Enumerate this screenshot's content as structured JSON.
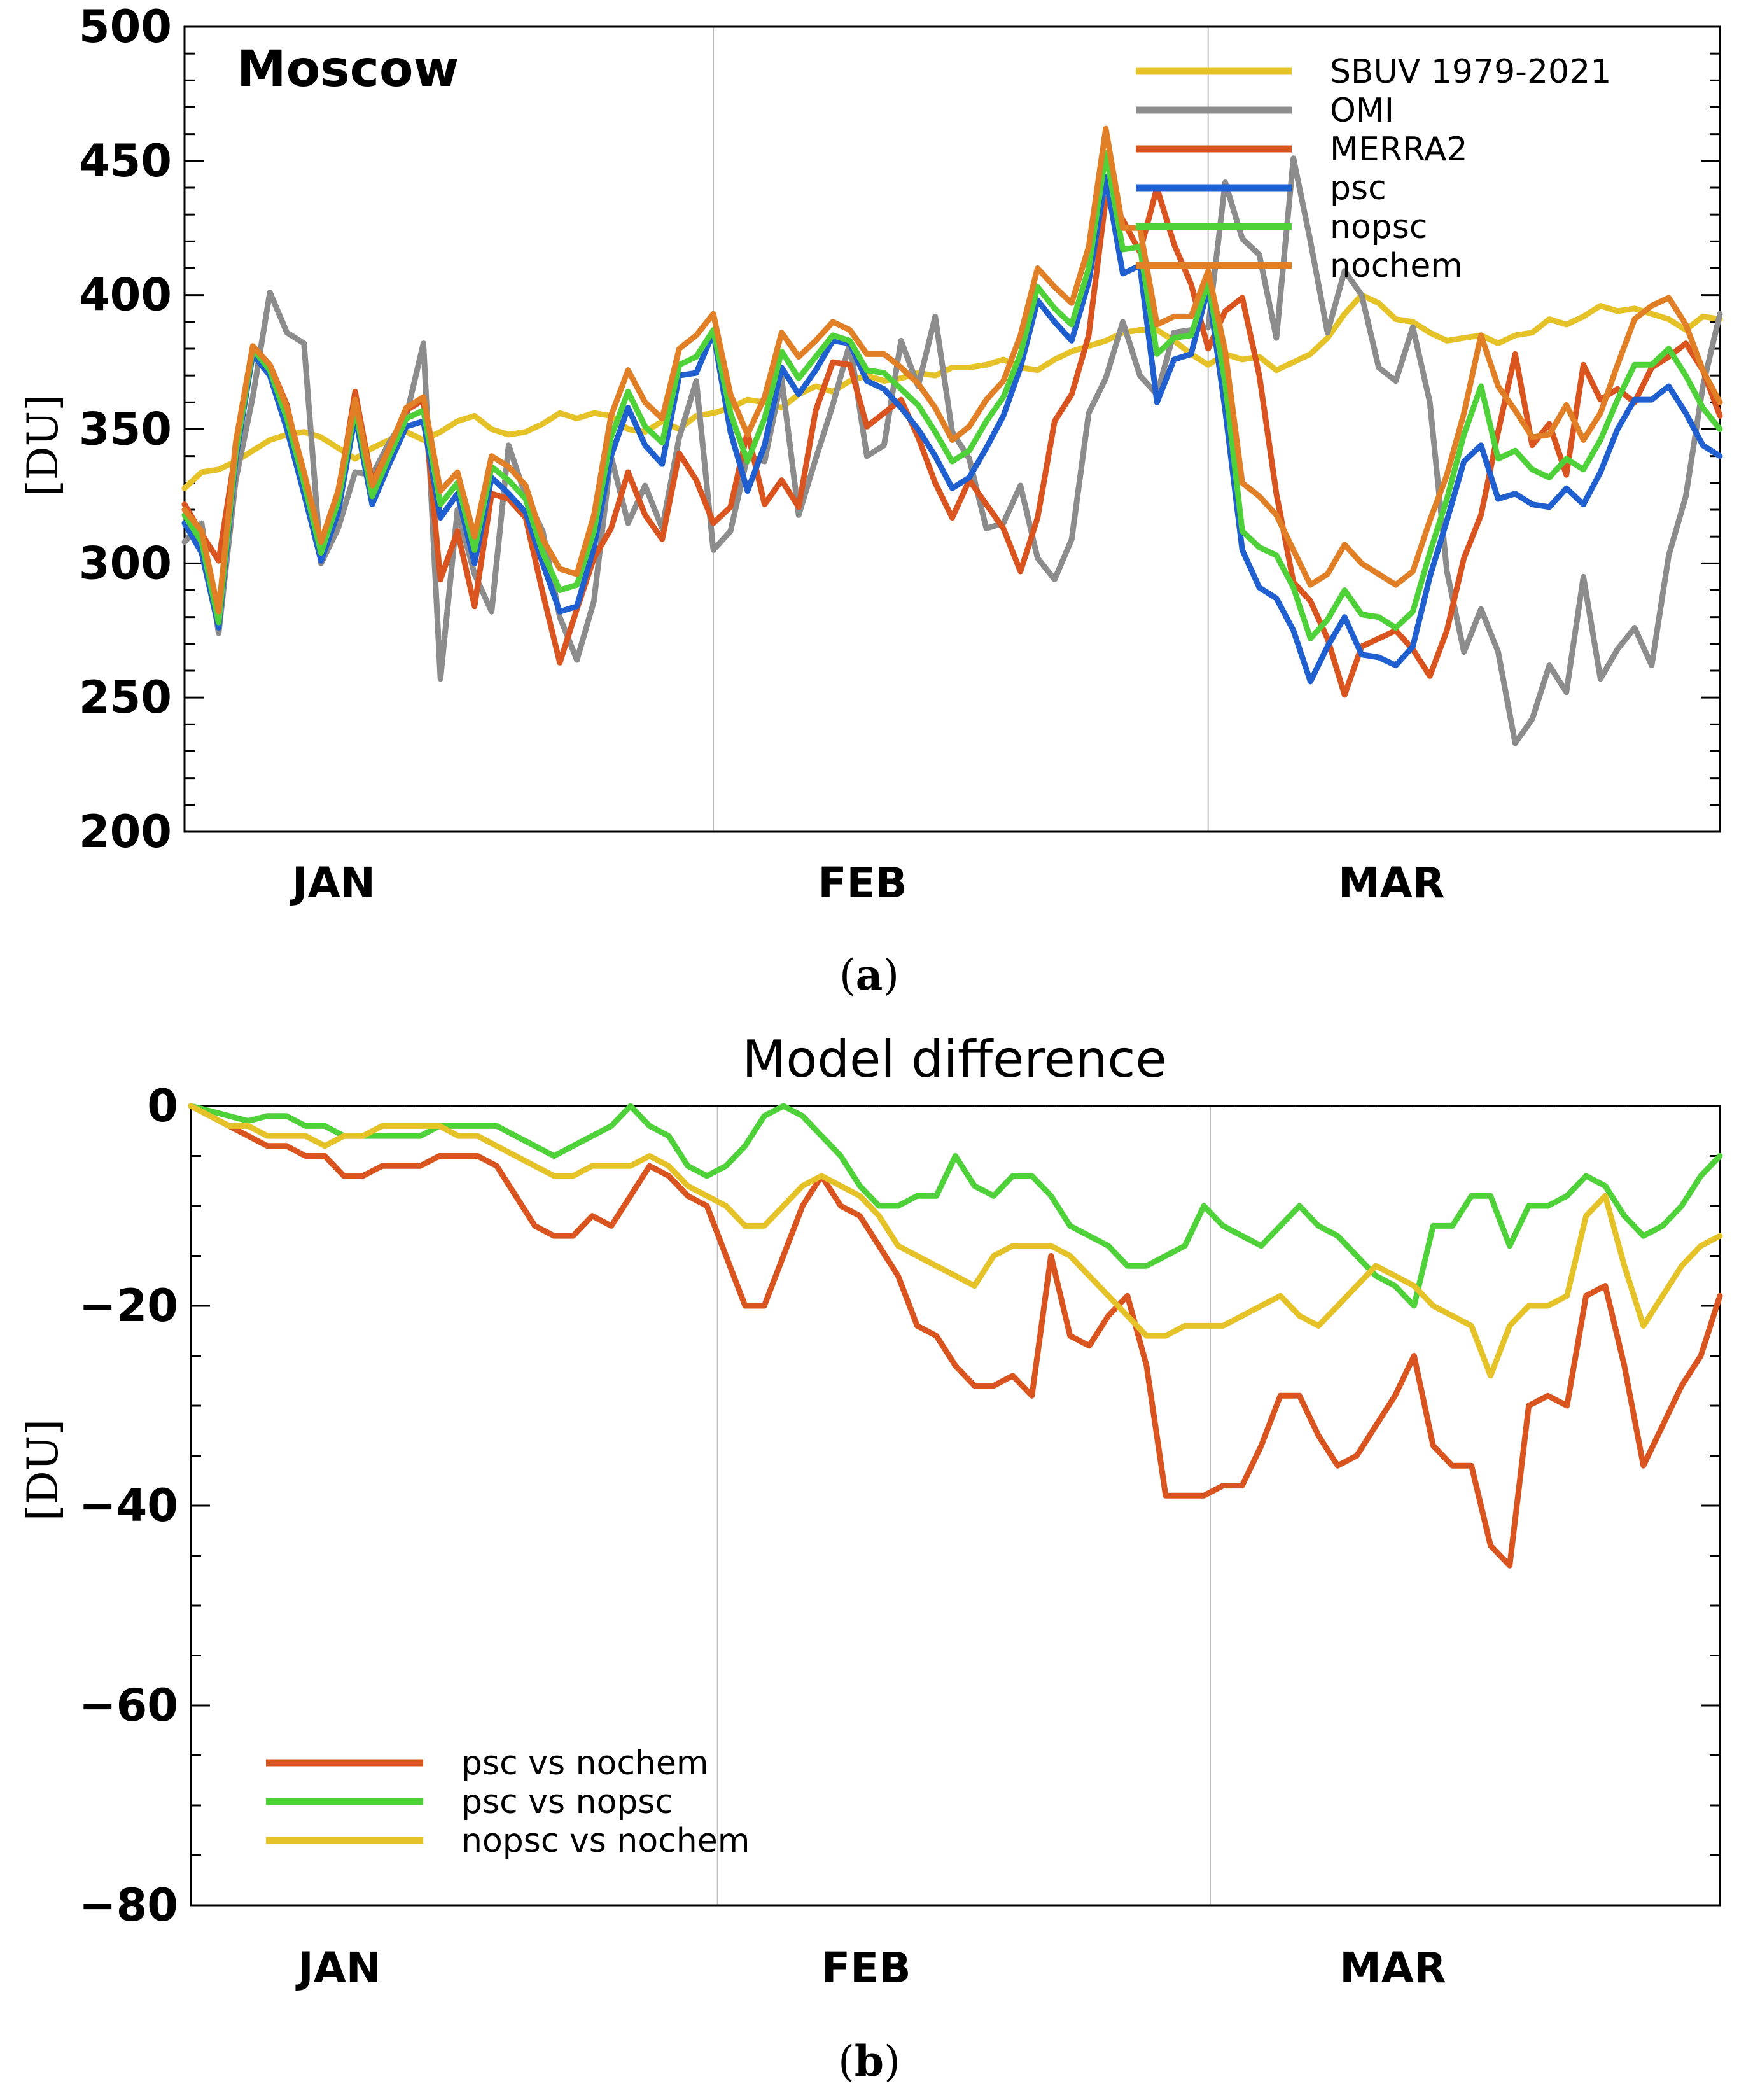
{
  "chart_data": [
    {
      "panel": "a",
      "type": "line",
      "title": "Moscow",
      "caption_letter": "a",
      "ylabel": "[DU]",
      "xlabel": "",
      "ylim": [
        200,
        500
      ],
      "yticks": [
        200,
        250,
        300,
        350,
        400,
        450,
        500
      ],
      "day_range": [
        1,
        91
      ],
      "month_ticks": [
        {
          "day": 1,
          "label": ""
        },
        {
          "day": 32,
          "label": ""
        },
        {
          "day": 61,
          "label": ""
        }
      ],
      "month_labels": [
        {
          "day": 9,
          "label": "JAN"
        },
        {
          "day": 40,
          "label": "FEB"
        },
        {
          "day": 71,
          "label": "MAR"
        }
      ],
      "series": [
        {
          "name": "SBUV 1979-2021",
          "color": "#e6c229",
          "values": [
            328,
            334,
            335,
            338,
            342,
            346,
            348,
            349,
            347,
            343,
            339,
            343,
            346,
            349,
            346,
            349,
            353,
            355,
            350,
            348,
            349,
            352,
            356,
            354,
            356,
            355,
            350,
            349,
            353,
            350,
            355,
            356,
            358,
            361,
            360,
            358,
            363,
            366,
            364,
            368,
            370,
            368,
            369,
            371,
            370,
            373,
            373,
            374,
            376,
            373,
            372,
            376,
            379,
            381,
            383,
            386,
            387,
            387,
            383,
            378,
            374,
            378,
            376,
            377,
            372,
            375,
            378,
            384,
            393,
            400,
            397,
            391,
            390,
            386,
            383,
            384,
            385,
            382,
            385,
            386,
            391,
            389,
            392,
            396,
            394,
            395,
            393,
            391,
            387,
            392,
            391
          ]
        },
        {
          "name": "OMI",
          "color": "#8c8c8c",
          "values": [
            308,
            315,
            274,
            331,
            362,
            401,
            386,
            382,
            300,
            313,
            334,
            333,
            345,
            355,
            382,
            257,
            320,
            296,
            282,
            344,
            325,
            312,
            280,
            264,
            286,
            340,
            315,
            329,
            313,
            347,
            368,
            305,
            312,
            340,
            338,
            369,
            318,
            339,
            359,
            382,
            340,
            344,
            383,
            366,
            392,
            349,
            339,
            313,
            315,
            329,
            302,
            294,
            309,
            356,
            369,
            390,
            370,
            363,
            386,
            387,
            388,
            442,
            421,
            415,
            384,
            451,
            420,
            386,
            409,
            400,
            373,
            368,
            388,
            360,
            297,
            267,
            283,
            267,
            233,
            242,
            262,
            252,
            295,
            257,
            268,
            276,
            262,
            303,
            325,
            366,
            393
          ]
        },
        {
          "name": "MERRA2",
          "color": "#d9541e",
          "values": [
            322,
            311,
            301,
            342,
            380,
            374,
            359,
            331,
            307,
            325,
            364,
            330,
            343,
            357,
            361,
            294,
            312,
            284,
            326,
            324,
            317,
            289,
            263,
            283,
            302,
            313,
            334,
            318,
            309,
            341,
            331,
            315,
            321,
            349,
            322,
            331,
            321,
            357,
            375,
            374,
            351,
            356,
            361,
            347,
            330,
            317,
            331,
            322,
            313,
            297,
            317,
            353,
            363,
            385,
            436,
            428,
            416,
            440,
            419,
            404,
            380,
            394,
            399,
            370,
            326,
            293,
            286,
            272,
            251,
            269,
            272,
            275,
            268,
            258,
            275,
            302,
            318,
            349,
            378,
            344,
            352,
            333,
            374,
            361,
            365,
            360,
            373,
            377,
            382,
            372,
            355
          ]
        },
        {
          "name": "psc",
          "color": "#1f5fcf",
          "values": [
            315,
            304,
            276,
            339,
            378,
            370,
            350,
            326,
            301,
            319,
            355,
            322,
            337,
            351,
            353,
            317,
            326,
            300,
            332,
            326,
            319,
            300,
            282,
            284,
            306,
            340,
            358,
            344,
            337,
            370,
            371,
            386,
            349,
            327,
            344,
            373,
            363,
            372,
            383,
            382,
            368,
            365,
            358,
            350,
            340,
            328,
            332,
            343,
            355,
            373,
            398,
            390,
            383,
            405,
            444,
            408,
            411,
            360,
            376,
            378,
            403,
            357,
            305,
            291,
            287,
            275,
            256,
            269,
            280,
            266,
            265,
            262,
            269,
            295,
            316,
            338,
            344,
            324,
            326,
            322,
            321,
            328,
            322,
            334,
            350,
            361,
            361,
            366,
            356,
            344,
            340
          ]
        },
        {
          "name": "nopsc",
          "color": "#4fd13a",
          "values": [
            318,
            308,
            278,
            341,
            380,
            372,
            354,
            330,
            304,
            323,
            358,
            325,
            340,
            354,
            357,
            322,
            330,
            305,
            336,
            331,
            324,
            304,
            290,
            292,
            312,
            347,
            364,
            351,
            345,
            374,
            377,
            387,
            356,
            338,
            354,
            379,
            369,
            377,
            385,
            383,
            372,
            371,
            365,
            359,
            349,
            338,
            342,
            353,
            362,
            378,
            403,
            395,
            389,
            410,
            453,
            417,
            418,
            378,
            384,
            385,
            405,
            367,
            312,
            306,
            303,
            291,
            272,
            279,
            290,
            281,
            280,
            276,
            282,
            304,
            324,
            348,
            366,
            339,
            342,
            335,
            332,
            339,
            335,
            346,
            361,
            374,
            374,
            380,
            370,
            358,
            350
          ]
        },
        {
          "name": "nochem",
          "color": "#e07f25",
          "values": [
            320,
            312,
            282,
            345,
            381,
            374,
            358,
            334,
            308,
            327,
            361,
            329,
            343,
            358,
            362,
            327,
            334,
            310,
            340,
            336,
            329,
            309,
            298,
            296,
            318,
            355,
            372,
            360,
            354,
            380,
            385,
            393,
            363,
            348,
            362,
            386,
            377,
            383,
            390,
            387,
            378,
            378,
            373,
            367,
            358,
            346,
            351,
            361,
            368,
            385,
            410,
            403,
            397,
            418,
            462,
            425,
            425,
            389,
            392,
            392,
            409,
            379,
            330,
            325,
            318,
            305,
            292,
            296,
            307,
            300,
            296,
            292,
            297,
            316,
            333,
            356,
            385,
            366,
            357,
            347,
            348,
            359,
            346,
            356,
            374,
            391,
            396,
            399,
            389,
            372,
            360
          ]
        }
      ]
    },
    {
      "panel": "b",
      "type": "line",
      "title": "Model difference",
      "caption_letter": "b",
      "ylabel": "[DU]",
      "xlabel": "",
      "ylim": [
        -80,
        0
      ],
      "yticks": [
        -80,
        -60,
        -40,
        -20,
        0
      ],
      "day_range": [
        1,
        91
      ],
      "month_ticks": [
        {
          "day": 1,
          "label": ""
        },
        {
          "day": 32,
          "label": ""
        },
        {
          "day": 61,
          "label": ""
        }
      ],
      "month_labels": [
        {
          "day": 9,
          "label": "JAN"
        },
        {
          "day": 40,
          "label": "FEB"
        },
        {
          "day": 71,
          "label": "MAR"
        }
      ],
      "zero_line": true,
      "series": [
        {
          "name": "psc vs nochem",
          "color": "#d9541e",
          "values": [
            0,
            -1,
            -2,
            -3,
            -4,
            -4,
            -5,
            -5,
            -7,
            -7,
            -6,
            -6,
            -6,
            -5,
            -5,
            -5,
            -6,
            -9,
            -12,
            -13,
            -13,
            -11,
            -12,
            -9,
            -6,
            -7,
            -9,
            -10,
            -15,
            -20,
            -20,
            -15,
            -10,
            -7,
            -10,
            -11,
            -14,
            -17,
            -22,
            -23,
            -26,
            -28,
            -28,
            -27,
            -29,
            -15,
            -23,
            -24,
            -21,
            -19,
            -26,
            -39,
            -39,
            -39,
            -38,
            -38,
            -34,
            -29,
            -29,
            -33,
            -36,
            -35,
            -32,
            -29,
            -25,
            -34,
            -36,
            -36,
            -44,
            -46,
            -30,
            -29,
            -30,
            -19,
            -18,
            -26,
            -36,
            -32,
            -28,
            -25,
            -19
          ]
        },
        {
          "name": "psc vs nopsc",
          "color": "#4fd13a",
          "values": [
            0,
            -0.5,
            -1,
            -1.5,
            -1,
            -1,
            -2,
            -2,
            -3,
            -3,
            -3,
            -3,
            -3,
            -2,
            -2,
            -2,
            -2,
            -3,
            -4,
            -5,
            -4,
            -3,
            -2,
            0,
            -2,
            -3,
            -6,
            -7,
            -6,
            -4,
            -1,
            0,
            -1,
            -3,
            -5,
            -8,
            -10,
            -10,
            -9,
            -9,
            -5,
            -8,
            -9,
            -7,
            -7,
            -9,
            -12,
            -13,
            -14,
            -16,
            -16,
            -15,
            -14,
            -10,
            -12,
            -13,
            -14,
            -12,
            -10,
            -12,
            -13,
            -15,
            -17,
            -18,
            -20,
            -12,
            -12,
            -9,
            -9,
            -14,
            -10,
            -10,
            -9,
            -7,
            -8,
            -11,
            -13,
            -12,
            -10,
            -7,
            -5
          ]
        },
        {
          "name": "nopsc vs nochem",
          "color": "#e6c229",
          "values": [
            0,
            -1,
            -2,
            -2,
            -3,
            -3,
            -3,
            -4,
            -3,
            -3,
            -2,
            -2,
            -2,
            -2,
            -3,
            -3,
            -4,
            -5,
            -6,
            -7,
            -7,
            -6,
            -6,
            -6,
            -5,
            -6,
            -8,
            -9,
            -10,
            -12,
            -12,
            -10,
            -8,
            -7,
            -8,
            -9,
            -11,
            -14,
            -15,
            -16,
            -17,
            -18,
            -15,
            -14,
            -14,
            -14,
            -15,
            -17,
            -19,
            -21,
            -23,
            -23,
            -22,
            -22,
            -22,
            -21,
            -20,
            -19,
            -21,
            -22,
            -20,
            -18,
            -16,
            -17,
            -18,
            -20,
            -21,
            -22,
            -27,
            -22,
            -20,
            -20,
            -19,
            -11,
            -9,
            -16,
            -22,
            -19,
            -16,
            -14,
            -13
          ]
        }
      ]
    }
  ]
}
